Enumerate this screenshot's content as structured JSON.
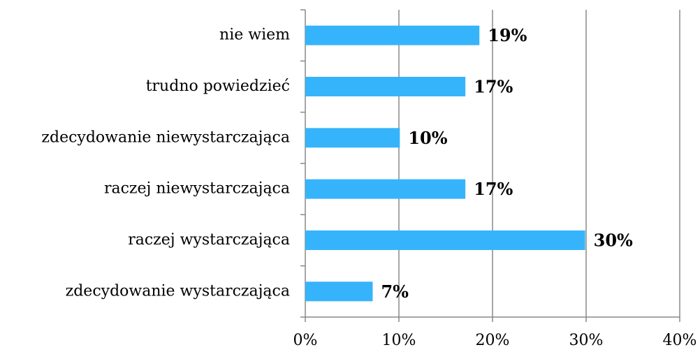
{
  "chart_data": {
    "type": "hbar",
    "categories": [
      "nie wiem",
      "trudno powiedzieć",
      "zdecydowanie niewystarczająca",
      "raczej niewystarczająca",
      "raczej wystarczająca",
      "zdecydowanie wystarczająca"
    ],
    "values": [
      18.6,
      17.1,
      10.1,
      17.1,
      29.9,
      7.2
    ],
    "value_labels": [
      "19%",
      "17%",
      "10%",
      "17%",
      "30%",
      "7%"
    ],
    "color": "#36b4fb",
    "xlim": [
      0,
      40
    ],
    "xticks": [
      {
        "value": 0,
        "label": "0%"
      },
      {
        "value": 10,
        "label": "10%"
      },
      {
        "value": 20,
        "label": "20%"
      },
      {
        "value": 30,
        "label": "30%"
      },
      {
        "value": 40,
        "label": "40%"
      }
    ],
    "grid": true
  }
}
